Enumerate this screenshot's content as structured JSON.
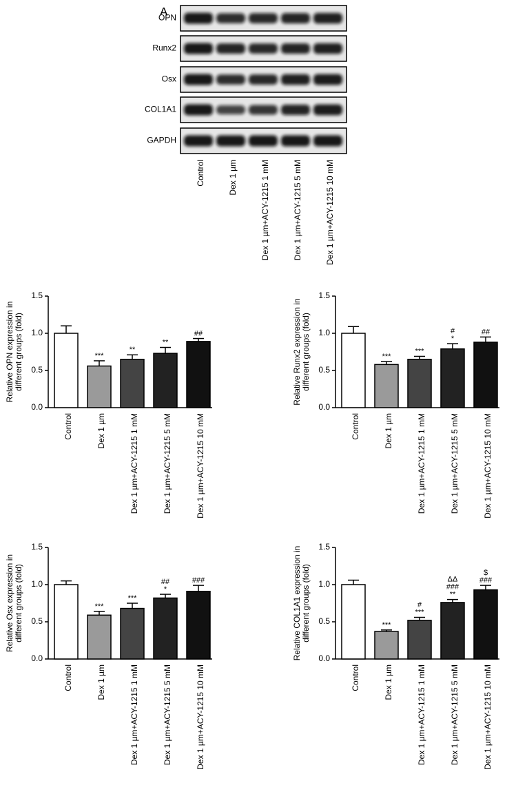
{
  "blot": {
    "panel_label": "A",
    "proteins": [
      "OPN",
      "Runx2",
      "Osx",
      "COL1A1",
      "GAPDH"
    ],
    "lanes": [
      "Control",
      "Dex 1 µm",
      "Dex 1 µm+ACY-1215 1 mM",
      "Dex 1 µm+ACY-1215 5 mM",
      "Dex 1 µm+ACY-1215 10 mM"
    ]
  },
  "chart_data": [
    {
      "type": "bar",
      "ylabel": [
        "Relative OPN expression in",
        "different groups (fold)"
      ],
      "categories": [
        "Control",
        "Dex 1 µm",
        "Dex 1 µm+ACY-1215 1 mM",
        "Dex 1 µm+ACY-1215 5 mM",
        "Dex 1 µm+ACY-1215 10 mM"
      ],
      "values": [
        1.0,
        0.56,
        0.65,
        0.73,
        0.89
      ],
      "errors": [
        0.1,
        0.07,
        0.06,
        0.08,
        0.04
      ],
      "colors": [
        "#ffffff",
        "#9a9a9a",
        "#444444",
        "#222222",
        "#111111"
      ],
      "annotations": [
        [],
        [
          "***"
        ],
        [
          "**"
        ],
        [
          "**"
        ],
        [
          "##"
        ]
      ],
      "ylim": [
        0,
        1.5
      ],
      "yticks": [
        {
          "value": 0,
          "label": "0.0"
        },
        0.5,
        {
          "value": 1,
          "label": "1.0"
        },
        1.5
      ]
    },
    {
      "type": "bar",
      "ylabel": [
        "Relative Runx2 expression in",
        "different groups (fold)"
      ],
      "categories": [
        "Control",
        "Dex 1 µm",
        "Dex 1 µm+ACY-1215 1 mM",
        "Dex 1 µm+ACY-1215 5 mM",
        "Dex 1 µm+ACY-1215 10 mM"
      ],
      "values": [
        1.0,
        0.58,
        0.65,
        0.79,
        0.88
      ],
      "errors": [
        0.09,
        0.04,
        0.04,
        0.07,
        0.07
      ],
      "colors": [
        "#ffffff",
        "#9a9a9a",
        "#444444",
        "#222222",
        "#111111"
      ],
      "annotations": [
        [],
        [
          "***"
        ],
        [
          "***"
        ],
        [
          "#",
          "*"
        ],
        [
          "##"
        ]
      ],
      "ylim": [
        0,
        1.5
      ],
      "yticks": [
        {
          "value": 0,
          "label": "0.0"
        },
        0.5,
        {
          "value": 1,
          "label": "1.0"
        },
        1.5
      ]
    },
    {
      "type": "bar",
      "ylabel": [
        "Relative Osx expression in",
        "different groups (fold)"
      ],
      "categories": [
        "Control",
        "Dex 1 µm",
        "Dex 1 µm+ACY-1215 1 mM",
        "Dex 1 µm+ACY-1215 5 mM",
        "Dex 1 µm+ACY-1215 10 mM"
      ],
      "values": [
        1.0,
        0.59,
        0.68,
        0.82,
        0.91
      ],
      "errors": [
        0.05,
        0.05,
        0.07,
        0.05,
        0.08
      ],
      "colors": [
        "#ffffff",
        "#9a9a9a",
        "#444444",
        "#222222",
        "#111111"
      ],
      "annotations": [
        [],
        [
          "***"
        ],
        [
          "***"
        ],
        [
          "##",
          "*"
        ],
        [
          "###"
        ]
      ],
      "ylim": [
        0,
        1.5
      ],
      "yticks": [
        {
          "value": 0,
          "label": "0.0"
        },
        0.5,
        {
          "value": 1,
          "label": "1.0"
        },
        1.5
      ]
    },
    {
      "type": "bar",
      "ylabel": [
        "Relative COL1A1 expression in",
        "different groups (fold)"
      ],
      "categories": [
        "Control",
        "Dex 1 µm",
        "Dex 1 µm+ACY-1215 1 mM",
        "Dex 1 µm+ACY-1215 5 mM",
        "Dex 1 µm+ACY-1215 10 mM"
      ],
      "values": [
        1.0,
        0.37,
        0.52,
        0.76,
        0.93
      ],
      "errors": [
        0.06,
        0.02,
        0.04,
        0.04,
        0.06
      ],
      "colors": [
        "#ffffff",
        "#9a9a9a",
        "#444444",
        "#222222",
        "#111111"
      ],
      "annotations": [
        [],
        [
          "***"
        ],
        [
          "#",
          "***"
        ],
        [
          "ΔΔ",
          "###",
          "**"
        ],
        [
          "$",
          "###"
        ]
      ],
      "ylim": [
        0,
        1.5
      ],
      "yticks": [
        {
          "value": 0,
          "label": "0.0"
        },
        0.5,
        {
          "value": 1,
          "label": "1.0"
        },
        1.5
      ]
    }
  ]
}
